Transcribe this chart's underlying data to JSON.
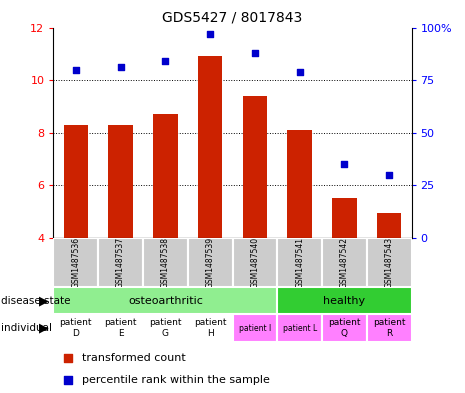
{
  "title": "GDS5427 / 8017843",
  "samples": [
    "GSM1487536",
    "GSM1487537",
    "GSM1487538",
    "GSM1487539",
    "GSM1487540",
    "GSM1487541",
    "GSM1487542",
    "GSM1487543"
  ],
  "red_values": [
    8.3,
    8.3,
    8.7,
    10.9,
    9.4,
    8.1,
    5.5,
    4.95
  ],
  "blue_values": [
    80,
    81,
    84,
    97,
    88,
    79,
    35,
    30
  ],
  "ylim_left": [
    4,
    12
  ],
  "ylim_right": [
    0,
    100
  ],
  "yticks_left": [
    4,
    6,
    8,
    10,
    12
  ],
  "yticks_right": [
    0,
    25,
    50,
    75,
    100
  ],
  "disease_state_colors": [
    "#90EE90",
    "#32CD32"
  ],
  "individual_colors": [
    "#ffffff",
    "#ffffff",
    "#ffffff",
    "#ffffff",
    "#FF80FF",
    "#FF80FF",
    "#FF80FF",
    "#FF80FF"
  ],
  "individual_labels": [
    "patient\nD",
    "patient\nE",
    "patient\nG",
    "patient\nH",
    "patient I",
    "patient L",
    "patient\nQ",
    "patient\nR"
  ],
  "individual_fontsizes": [
    6.5,
    6.5,
    6.5,
    6.5,
    5.5,
    5.5,
    6.5,
    6.5
  ],
  "bar_color": "#CC2200",
  "dot_color": "#0000CC",
  "sample_bg_color": "#CCCCCC",
  "legend_items": [
    {
      "color": "#CC2200",
      "label": "transformed count"
    },
    {
      "color": "#0000CC",
      "label": "percentile rank within the sample"
    }
  ]
}
